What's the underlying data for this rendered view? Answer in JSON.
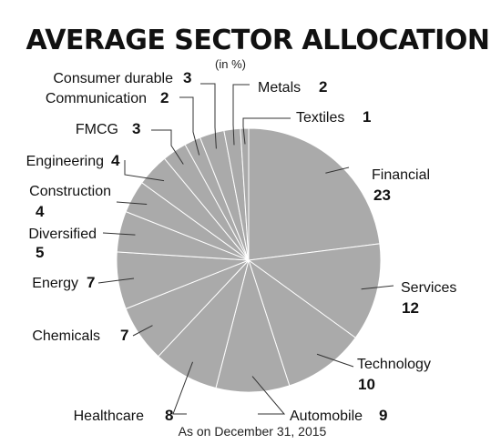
{
  "chart_data": {
    "type": "pie",
    "title": "AVERAGE SECTOR ALLOCATION",
    "subtitle": "(in %)",
    "footnote": "As on December 31, 2015",
    "slices": [
      {
        "label": "Financial",
        "value": 23
      },
      {
        "label": "Services",
        "value": 12
      },
      {
        "label": "Technology",
        "value": 10
      },
      {
        "label": "Automobile",
        "value": 9
      },
      {
        "label": "Healthcare",
        "value": 8
      },
      {
        "label": "Chemicals",
        "value": 7
      },
      {
        "label": "Energy",
        "value": 7
      },
      {
        "label": "Diversified",
        "value": 5
      },
      {
        "label": "Construction",
        "value": 4
      },
      {
        "label": "Engineering",
        "value": 4
      },
      {
        "label": "FMCG",
        "value": 3
      },
      {
        "label": "Communication",
        "value": 2
      },
      {
        "label": "Consumer durable",
        "value": 3
      },
      {
        "label": "Metals",
        "value": 2
      },
      {
        "label": "Textiles",
        "value": 1
      }
    ],
    "colors": {
      "slice": "#aaaaaa",
      "border": "#ffffff",
      "text": "#111111"
    }
  }
}
